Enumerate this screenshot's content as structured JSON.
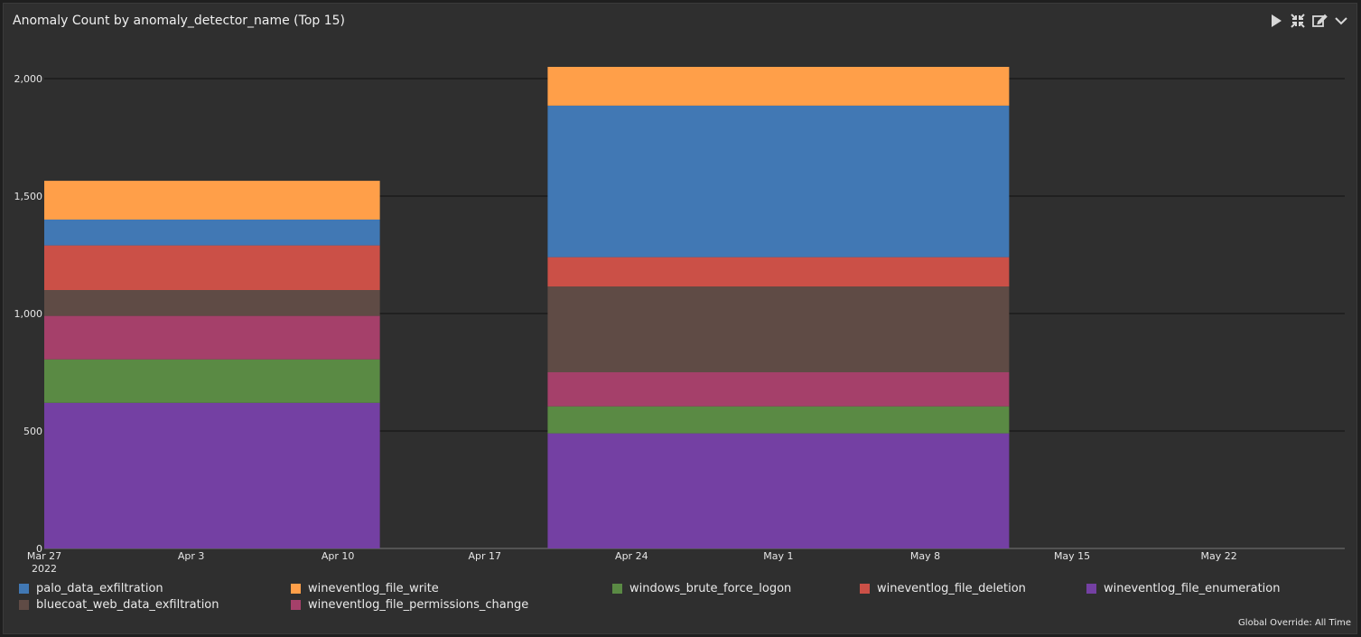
{
  "panel": {
    "title": "Anomaly Count by anomaly_detector_name (Top 15)",
    "footnote": "Global Override: All Time",
    "toolbar": [
      {
        "name": "play-icon",
        "glyph": "play"
      },
      {
        "name": "collapse-icon",
        "glyph": "collapse"
      },
      {
        "name": "edit-icon",
        "glyph": "edit"
      },
      {
        "name": "chevron-down-icon",
        "glyph": "chevron"
      }
    ]
  },
  "colors": {
    "palo_data_exfiltration": "#4178b4",
    "wineventlog_file_write": "#ff9f49",
    "windows_brute_force_logon": "#5a8a44",
    "wineventlog_file_deletion": "#cb5047",
    "wineventlog_file_enumeration": "#7440a3",
    "bluecoat_web_data_exfiltration": "#5f4b45",
    "wineventlog_file_permissions_change": "#a5406a"
  },
  "chart_data": {
    "type": "bar",
    "stacked": true,
    "title": "Anomaly Count by anomaly_detector_name (Top 15)",
    "xlabel": "",
    "ylabel": "",
    "ylim": [
      0,
      2000
    ],
    "yticks": [
      0,
      500,
      1000,
      1500,
      2000
    ],
    "ytick_labels": [
      "0",
      "500",
      "1,000",
      "1,500",
      "2,000"
    ],
    "x_axis": {
      "type": "time",
      "range": [
        "2022-03-27",
        "2022-05-28"
      ],
      "ticks": [
        {
          "date": "2022-03-27",
          "label": "Mar 27",
          "sublabel": "2022"
        },
        {
          "date": "2022-04-03",
          "label": "Apr 3",
          "sublabel": ""
        },
        {
          "date": "2022-04-10",
          "label": "Apr 10",
          "sublabel": ""
        },
        {
          "date": "2022-04-17",
          "label": "Apr 17",
          "sublabel": ""
        },
        {
          "date": "2022-04-24",
          "label": "Apr 24",
          "sublabel": ""
        },
        {
          "date": "2022-05-01",
          "label": "May 1",
          "sublabel": ""
        },
        {
          "date": "2022-05-08",
          "label": "May 8",
          "sublabel": ""
        },
        {
          "date": "2022-05-15",
          "label": "May 15",
          "sublabel": ""
        },
        {
          "date": "2022-05-22",
          "label": "May 22",
          "sublabel": ""
        }
      ]
    },
    "bars": [
      {
        "start": "2022-03-27",
        "end": "2022-04-12"
      },
      {
        "start": "2022-04-20",
        "end": "2022-05-12"
      }
    ],
    "series": [
      {
        "name": "wineventlog_file_enumeration",
        "values": [
          620,
          490
        ]
      },
      {
        "name": "windows_brute_force_logon",
        "values": [
          185,
          115
        ]
      },
      {
        "name": "wineventlog_file_permissions_change",
        "values": [
          185,
          145
        ]
      },
      {
        "name": "bluecoat_web_data_exfiltration",
        "values": [
          110,
          365
        ]
      },
      {
        "name": "wineventlog_file_deletion",
        "values": [
          190,
          125
        ]
      },
      {
        "name": "palo_data_exfiltration",
        "values": [
          110,
          645
        ]
      },
      {
        "name": "wineventlog_file_write",
        "values": [
          165,
          165
        ]
      }
    ],
    "legend": {
      "placement": "bottom",
      "items": [
        "palo_data_exfiltration",
        "wineventlog_file_write",
        "windows_brute_force_logon",
        "wineventlog_file_deletion",
        "wineventlog_file_enumeration",
        "bluecoat_web_data_exfiltration",
        "wineventlog_file_permissions_change"
      ]
    },
    "grid": true
  }
}
